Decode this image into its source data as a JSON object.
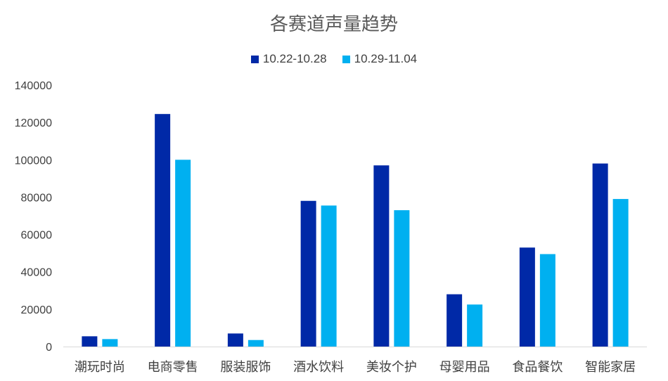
{
  "chart_data": {
    "type": "bar",
    "title": "各赛道声量趋势",
    "categories": [
      "潮玩时尚",
      "电商零售",
      "服装服饰",
      "酒水饮料",
      "美妆个护",
      "母婴用品",
      "食品餐饮",
      "智能家居"
    ],
    "series": [
      {
        "name": "10.22-10.28",
        "color": "#0029A7",
        "values": [
          5500,
          124500,
          7000,
          78000,
          97000,
          28000,
          53000,
          98000
        ]
      },
      {
        "name": "10.29-11.04",
        "color": "#00B0F0",
        "values": [
          4000,
          100000,
          3500,
          75500,
          73000,
          22500,
          49500,
          79000
        ]
      }
    ],
    "ylim": [
      0,
      140000
    ],
    "yticks": [
      "0",
      "20000",
      "40000",
      "60000",
      "80000",
      "100000",
      "120000",
      "140000"
    ],
    "legend_position": "top",
    "grid": false
  }
}
